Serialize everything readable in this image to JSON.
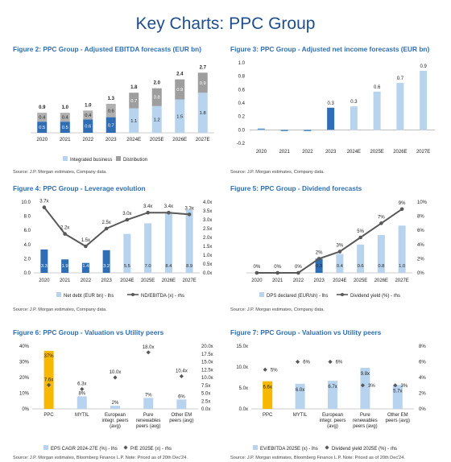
{
  "page": {
    "title": "Key Charts: PPC Group"
  },
  "colors": {
    "dark_blue": "#2f6db5",
    "light_blue": "#b8d3ee",
    "grey": "#8c8c8c",
    "orange": "#f6b800",
    "line": "#595959",
    "diamond": "#595959"
  },
  "chart_data": [
    {
      "id": "fig2",
      "type": "bar",
      "stacked": true,
      "title": "Figure 2: PPC Group - Adjusted EBITDA forecasts (EUR bn)",
      "source": "Source: J.P. Morgan estimates, Company data.",
      "categories": [
        "2020",
        "2021",
        "2022",
        "2023",
        "2024E",
        "2025E",
        "2026E",
        "2027E"
      ],
      "series": [
        {
          "name": "Integrated business",
          "values": [
            0.5,
            0.5,
            0.6,
            0.7,
            1.1,
            1.2,
            1.5,
            1.8
          ],
          "labels": [
            "0.5",
            "0.5",
            "0.6",
            "0.7",
            "1.1",
            "1.2",
            "1.5",
            "1.8"
          ]
        },
        {
          "name": "Distribution",
          "values": [
            0.4,
            0.4,
            0.4,
            0.6,
            0.7,
            0.8,
            0.9,
            0.9
          ],
          "labels": [
            "0.4",
            "0.4",
            "0.4",
            "0.6",
            "0.7",
            "0.8",
            "0.9",
            "0.9"
          ]
        }
      ],
      "totals": [
        "0.9",
        "1.0",
        "1.0",
        "1.3",
        "1.8",
        "2.0",
        "2.4",
        "2.7"
      ],
      "ylim": [
        0,
        3
      ]
    },
    {
      "id": "fig3",
      "type": "bar",
      "title": "Figure 3: PPC Group - Adjusted net income forecasts (EUR bn)",
      "source": "Source: J.P. Morgan estimates, Company data.",
      "categories": [
        "2020",
        "2021",
        "2022",
        "2023",
        "2024E",
        "2025E",
        "2026E",
        "2027E"
      ],
      "values": [
        0.02,
        -0.02,
        -0.02,
        0.33,
        0.35,
        0.57,
        0.7,
        0.88
      ],
      "labels": [
        "",
        "",
        "",
        "0.3",
        "0.3",
        "0.6",
        "0.7",
        "0.9"
      ],
      "yticks": [
        "1.0",
        "0.8",
        "0.6",
        "0.4",
        "0.2",
        "0.0",
        "-0.2"
      ],
      "ylim": [
        -0.2,
        1.0
      ]
    },
    {
      "id": "fig4",
      "type": "bar",
      "title": "Figure 4: PPC Group - Leverage evolution",
      "source": "Source: J.P. Morgan estimates, Company data.",
      "categories": [
        "2020",
        "2021",
        "2022",
        "2023",
        "2024E",
        "2025E",
        "2026E",
        "2027E"
      ],
      "series": [
        {
          "name": "Net debt (EUR bn) - lhs",
          "values": [
            3.3,
            1.9,
            1.4,
            3.2,
            5.5,
            7.0,
            8.4,
            8.9
          ],
          "labels": [
            "3.3",
            "1.9",
            "1.4",
            "3.2",
            "5.5",
            "7.0",
            "8.4",
            "8.9"
          ]
        },
        {
          "name": "ND/EBITDA (x) - rhs",
          "values": [
            3.7,
            2.2,
            1.5,
            2.5,
            3.0,
            3.4,
            3.4,
            3.3
          ],
          "labels": [
            "3.7x",
            "2.2x",
            "1.5x",
            "2.5x",
            "3.0x",
            "3.4x",
            "3.4x",
            "3.3x"
          ]
        }
      ],
      "yticks_left": [
        "10.0",
        "8.0",
        "6.0",
        "4.0",
        "2.0",
        "0.0"
      ],
      "yticks_right": [
        "4.0x",
        "3.5x",
        "3.0x",
        "2.5x",
        "2.0x",
        "1.5x",
        "1.0x",
        "0.5x",
        "0.0x"
      ],
      "ylim": [
        0,
        10
      ],
      "y2lim": [
        0,
        4
      ]
    },
    {
      "id": "fig5",
      "type": "bar",
      "title": "Figure 5: PPC Group - Dividend forecasts",
      "source": "Source: J.P. Morgan estimates, Company data.",
      "categories": [
        "2020",
        "2021",
        "2022",
        "2023",
        "2024E",
        "2025E",
        "2026E",
        "2027E"
      ],
      "series": [
        {
          "name": "DPS declared (EUR/sh) - lhs",
          "values": [
            0,
            0,
            0,
            0.3,
            0.4,
            0.6,
            0.8,
            1.0
          ],
          "labels": [
            "",
            "",
            "",
            "0.3",
            "0.4",
            "0.6",
            "0.8",
            "1.0"
          ]
        },
        {
          "name": "Dividend yield (%) - rhs",
          "values": [
            0,
            0,
            0,
            2,
            3,
            5,
            7,
            9
          ],
          "labels": [
            "0%",
            "0%",
            "0%",
            "2%",
            "3%",
            "5%",
            "7%",
            "9%"
          ]
        }
      ],
      "yticks_right": [
        "10%",
        "8%",
        "6%",
        "4%",
        "2%",
        "0%"
      ],
      "ylim": [
        0,
        1.5
      ],
      "y2lim": [
        0,
        10
      ]
    },
    {
      "id": "fig6",
      "type": "bar",
      "title": "Figure 6: PPC Group - Valuation vs Utility peers",
      "source": "Source: J.P. Morgan estimates, Bloomberg Finance L.P. Note: Priced as of 20th Dec'24.",
      "categories": [
        "PPC",
        "MYTIL",
        "European integr. peers (avg)",
        "Pure renewables peers (avg)",
        "Other EM peers (avg)"
      ],
      "series": [
        {
          "name": "EPS CAGR 2024-27E (%) - lhs",
          "values": [
            37,
            8,
            2,
            7,
            6
          ],
          "labels": [
            "37%",
            "8%",
            "2%",
            "7%",
            "6%"
          ]
        },
        {
          "name": "P/E 2025E (x) - rhs",
          "values": [
            7.6,
            6.3,
            10.0,
            18.0,
            10.4
          ],
          "labels": [
            "7.6x",
            "6.3x",
            "10.0x",
            "18.0x",
            "10.4x"
          ]
        }
      ],
      "yticks_left": [
        "40%",
        "30%",
        "20%",
        "10%",
        "0%"
      ],
      "yticks_right": [
        "20.0x",
        "17.5x",
        "15.0x",
        "12.5x",
        "10.0x",
        "7.5x",
        "5.0x",
        "2.5x",
        "0.0x"
      ],
      "ylim": [
        0,
        40
      ],
      "y2lim": [
        0,
        20
      ]
    },
    {
      "id": "fig7",
      "type": "bar",
      "title": "Figure 7: PPC Group - Valuation vs Utility peers",
      "source": "Source: J.P. Morgan estimates, Bloomberg Finance L.P. Note: Priced as of 20th Dec'24.",
      "categories": [
        "PPC",
        "MYTIL",
        "European integr. peers (avg)",
        "Pure renewables peers (avg)",
        "Other EM peers (avg)"
      ],
      "series": [
        {
          "name": "EV/EBITDA 2025E (x) - lhs",
          "values": [
            6.6,
            6.0,
            6.7,
            9.8,
            5.7
          ],
          "labels": [
            "6.6x",
            "6.0x",
            "6.7x",
            "9.8x",
            "5.7x"
          ]
        },
        {
          "name": "Dividend yield 2025E (%) - rhs",
          "values": [
            5,
            6,
            6,
            3,
            3
          ],
          "labels": [
            "5%",
            "6%",
            "6%",
            "3%",
            "3%"
          ]
        }
      ],
      "yticks_left": [
        "15.0x",
        "10.0x",
        "5.0x",
        "0.0x"
      ],
      "yticks_right": [
        "8%",
        "6%",
        "4%",
        "2%",
        "0%"
      ],
      "ylim": [
        0,
        15
      ],
      "y2lim": [
        0,
        8
      ]
    }
  ]
}
